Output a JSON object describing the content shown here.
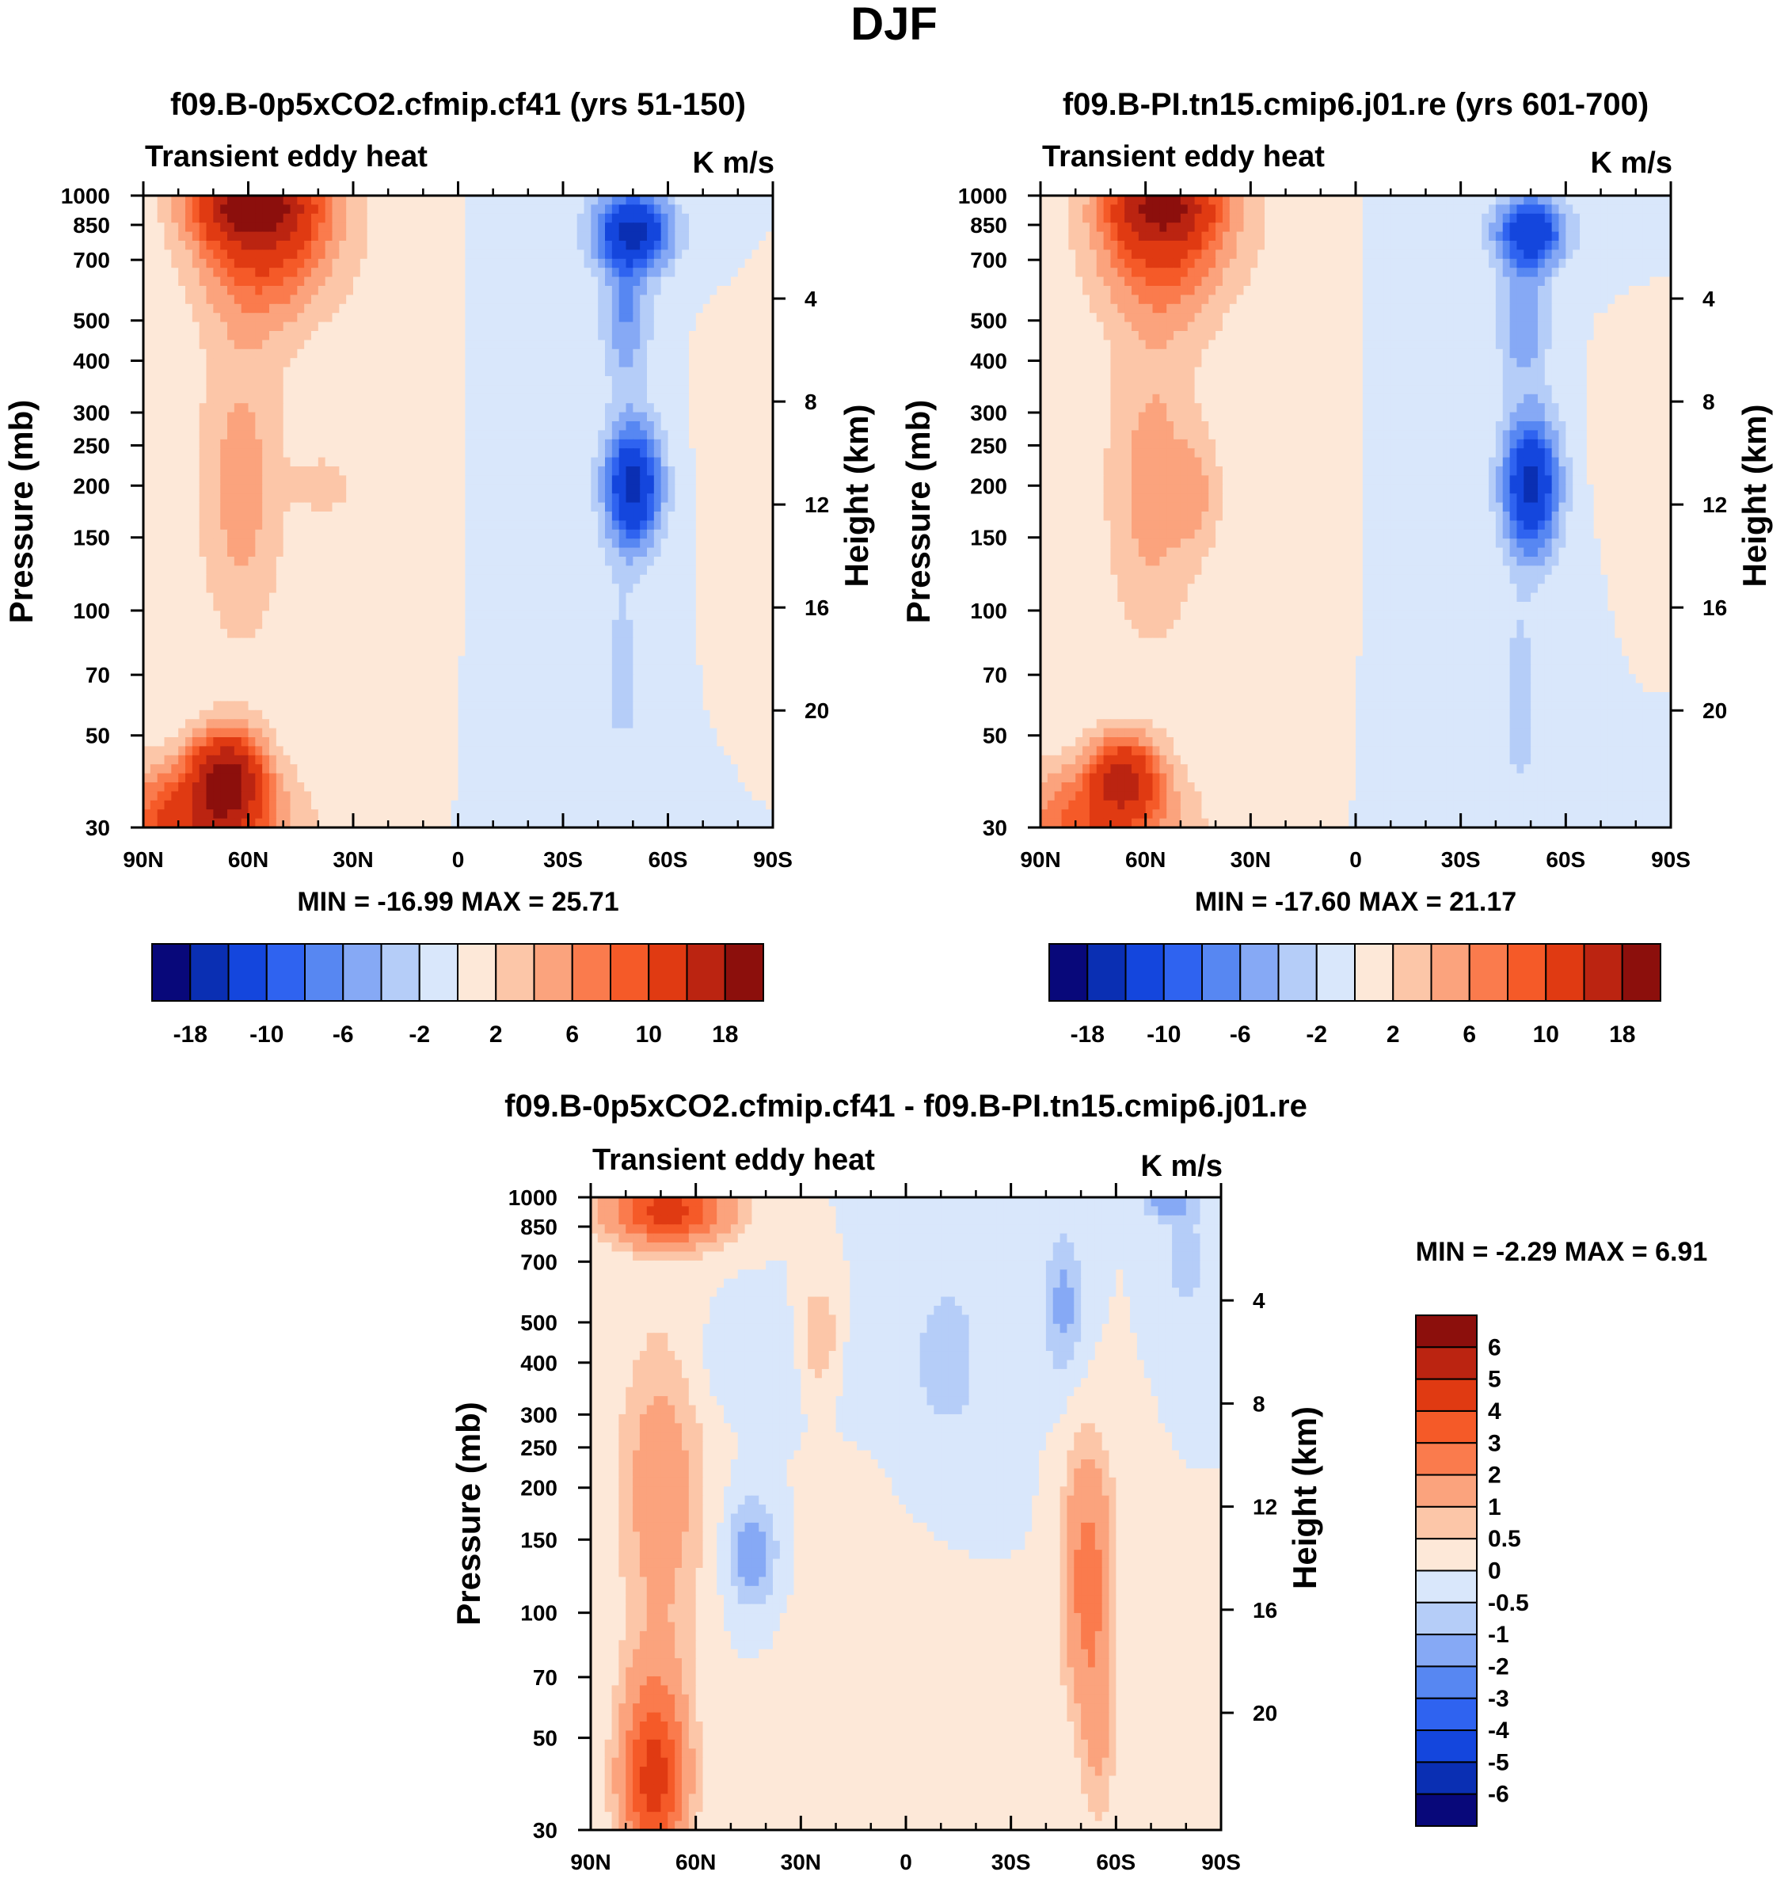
{
  "figure_title": "DJF",
  "chart_data": [
    {
      "type": "heatmap",
      "title": "f09.B-0p5xCO2.cfmip.cf41 (yrs 51-150)",
      "subtitle_left": "Transient eddy heat",
      "subtitle_right": "K m/s",
      "xlabel": "",
      "ylabel": "Pressure (mb)",
      "ylabel_right": "Height (km)",
      "x_ticks": [
        "90N",
        "60N",
        "30N",
        "0",
        "30S",
        "60S",
        "90S"
      ],
      "y_ticks": [
        "30",
        "50",
        "70",
        "100",
        "150",
        "200",
        "250",
        "300",
        "400",
        "500",
        "700",
        "850",
        "1000"
      ],
      "y_right_ticks": [
        "20",
        "16",
        "12",
        "8",
        "4"
      ],
      "min_max_text": "MIN = -16.99  MAX =  25.71",
      "colorbar": {
        "orientation": "horizontal",
        "labels": [
          "-18",
          "-10",
          "-6",
          "-2",
          "2",
          "6",
          "10",
          "18"
        ],
        "colors": [
          "#08087a",
          "#0a2fb3",
          "#1446dd",
          "#2f63f0",
          "#5787f2",
          "#86a9f5",
          "#b5cdf8",
          "#d9e7fb",
          "#fde8d8",
          "#fcc6a8",
          "#fba37d",
          "#fa7b4d",
          "#f55a28",
          "#e03a12",
          "#bb2411",
          "#8c0f0c"
        ]
      },
      "blobs": [
        {
          "lat": 75,
          "p": 30,
          "dlat": 26,
          "dz": 0.35,
          "v": 12
        },
        {
          "lat": 66,
          "p": 40,
          "dlat": 10,
          "dz": 0.25,
          "v": 16
        },
        {
          "lat": 62,
          "p": 200,
          "dlat": 13,
          "dz": 0.9,
          "v": 5
        },
        {
          "lat": 38,
          "p": 200,
          "dlat": 8,
          "dz": 0.18,
          "v": 3
        },
        {
          "lat": 55,
          "p": 850,
          "dlat": 20,
          "dz": 0.5,
          "v": 12
        },
        {
          "lat": 60,
          "p": 950,
          "dlat": 16,
          "dz": 0.2,
          "v": 12
        },
        {
          "lat": 15,
          "p": 300,
          "dlat": 14,
          "dz": 1.5,
          "v": 1.5
        },
        {
          "lat": -50,
          "p": 200,
          "dlat": 8,
          "dz": 0.35,
          "v": -15
        },
        {
          "lat": -50,
          "p": 820,
          "dlat": 11,
          "dz": 0.22,
          "v": -15
        },
        {
          "lat": -48,
          "p": 500,
          "dlat": 7,
          "dz": 0.35,
          "v": -6
        },
        {
          "lat": -47,
          "p": 70,
          "dlat": 6,
          "dz": 0.5,
          "v": -3
        },
        {
          "lat": -18,
          "p": 200,
          "dlat": 14,
          "dz": 2.0,
          "v": -1
        },
        {
          "lat": -80,
          "p": 250,
          "dlat": 8,
          "dz": 0.4,
          "v": 1.5
        }
      ]
    },
    {
      "type": "heatmap",
      "title": "f09.B-PI.tn15.cmip6.j01.re (yrs 601-700)",
      "subtitle_left": "Transient eddy heat",
      "subtitle_right": "K m/s",
      "xlabel": "",
      "ylabel": "Pressure (mb)",
      "ylabel_right": "Height (km)",
      "x_ticks": [
        "90N",
        "60N",
        "30N",
        "0",
        "30S",
        "60S",
        "90S"
      ],
      "y_ticks": [
        "30",
        "50",
        "70",
        "100",
        "150",
        "200",
        "250",
        "300",
        "400",
        "500",
        "700",
        "850",
        "1000"
      ],
      "y_right_ticks": [
        "20",
        "16",
        "12",
        "8",
        "4"
      ],
      "min_max_text": "MIN = -17.60  MAX =  21.17",
      "colorbar": {
        "orientation": "horizontal",
        "labels": [
          "-18",
          "-10",
          "-6",
          "-2",
          "2",
          "6",
          "10",
          "18"
        ],
        "colors": [
          "#08087a",
          "#0a2fb3",
          "#1446dd",
          "#2f63f0",
          "#5787f2",
          "#86a9f5",
          "#b5cdf8",
          "#d9e7fb",
          "#fde8d8",
          "#fcc6a8",
          "#fba37d",
          "#fa7b4d",
          "#f55a28",
          "#e03a12",
          "#bb2411",
          "#8c0f0c"
        ]
      },
      "blobs": [
        {
          "lat": 75,
          "p": 30,
          "dlat": 26,
          "dz": 0.35,
          "v": 9
        },
        {
          "lat": 66,
          "p": 40,
          "dlat": 10,
          "dz": 0.22,
          "v": 12
        },
        {
          "lat": 58,
          "p": 200,
          "dlat": 14,
          "dz": 0.9,
          "v": 5
        },
        {
          "lat": 45,
          "p": 190,
          "dlat": 7,
          "dz": 0.3,
          "v": 3
        },
        {
          "lat": 55,
          "p": 850,
          "dlat": 20,
          "dz": 0.5,
          "v": 11
        },
        {
          "lat": 55,
          "p": 950,
          "dlat": 14,
          "dz": 0.2,
          "v": 10
        },
        {
          "lat": 15,
          "p": 300,
          "dlat": 14,
          "dz": 1.5,
          "v": 1.5
        },
        {
          "lat": -50,
          "p": 200,
          "dlat": 8,
          "dz": 0.38,
          "v": -15
        },
        {
          "lat": -50,
          "p": 820,
          "dlat": 10,
          "dz": 0.2,
          "v": -13
        },
        {
          "lat": -48,
          "p": 500,
          "dlat": 7,
          "dz": 0.35,
          "v": -6
        },
        {
          "lat": -47,
          "p": 60,
          "dlat": 6,
          "dz": 0.6,
          "v": -3
        },
        {
          "lat": -18,
          "p": 200,
          "dlat": 14,
          "dz": 2.0,
          "v": -1
        },
        {
          "lat": -75,
          "p": 250,
          "dlat": 6,
          "dz": 0.3,
          "v": 1.5
        }
      ]
    },
    {
      "type": "heatmap",
      "title": "f09.B-0p5xCO2.cfmip.cf41 - f09.B-PI.tn15.cmip6.j01.re",
      "subtitle_left": "Transient eddy heat",
      "subtitle_right": "K m/s",
      "xlabel": "",
      "ylabel": "Pressure (mb)",
      "ylabel_right": "Height (km)",
      "x_ticks": [
        "90N",
        "60N",
        "30N",
        "0",
        "30S",
        "60S",
        "90S"
      ],
      "y_ticks": [
        "30",
        "50",
        "70",
        "100",
        "150",
        "200",
        "250",
        "300",
        "400",
        "500",
        "700",
        "850",
        "1000"
      ],
      "y_right_ticks": [
        "20",
        "16",
        "12",
        "8",
        "4"
      ],
      "min_max_text": "MIN =  -2.29  MAX =   6.91",
      "colorbar": {
        "orientation": "vertical",
        "labels": [
          "6",
          "5",
          "4",
          "3",
          "2",
          "1",
          "0.5",
          "0",
          "-0.5",
          "-1",
          "-2",
          "-3",
          "-4",
          "-5",
          "-6"
        ],
        "colors": [
          "#08087a",
          "#0a2fb3",
          "#1446dd",
          "#2f63f0",
          "#5787f2",
          "#86a9f5",
          "#b5cdf8",
          "#d9e7fb",
          "#fde8d8",
          "#fcc6a8",
          "#fba37d",
          "#fa7b4d",
          "#f55a28",
          "#e03a12",
          "#bb2411",
          "#8c0f0c"
        ]
      },
      "blobs": [
        {
          "lat": 72,
          "p": 40,
          "dlat": 9,
          "dz": 0.55,
          "v": 4.5
        },
        {
          "lat": 70,
          "p": 200,
          "dlat": 12,
          "dz": 0.9,
          "v": 1.5
        },
        {
          "lat": 68,
          "p": 930,
          "dlat": 16,
          "dz": 0.18,
          "v": 4.5
        },
        {
          "lat": 44,
          "p": 140,
          "dlat": 7,
          "dz": 0.3,
          "v": -1.5
        },
        {
          "lat": 40,
          "p": 400,
          "dlat": 30,
          "dz": 0.3,
          "v": -0.4
        },
        {
          "lat": 25,
          "p": 450,
          "dlat": 6,
          "dz": 0.3,
          "v": 1.2
        },
        {
          "lat": 5,
          "p": 80,
          "dlat": 25,
          "dz": 0.9,
          "v": 0.3
        },
        {
          "lat": -12,
          "p": 400,
          "dlat": 16,
          "dz": 0.8,
          "v": -0.6
        },
        {
          "lat": -45,
          "p": 550,
          "dlat": 6,
          "dz": 0.4,
          "v": -1.2
        },
        {
          "lat": -52,
          "p": 120,
          "dlat": 7,
          "dz": 0.7,
          "v": 2.5
        },
        {
          "lat": -55,
          "p": 50,
          "dlat": 5,
          "dz": 0.5,
          "v": 1.0
        },
        {
          "lat": -80,
          "p": 700,
          "dlat": 7,
          "dz": 0.3,
          "v": -0.8
        },
        {
          "lat": -75,
          "p": 980,
          "dlat": 7,
          "dz": 0.1,
          "v": -1.5
        }
      ]
    }
  ]
}
